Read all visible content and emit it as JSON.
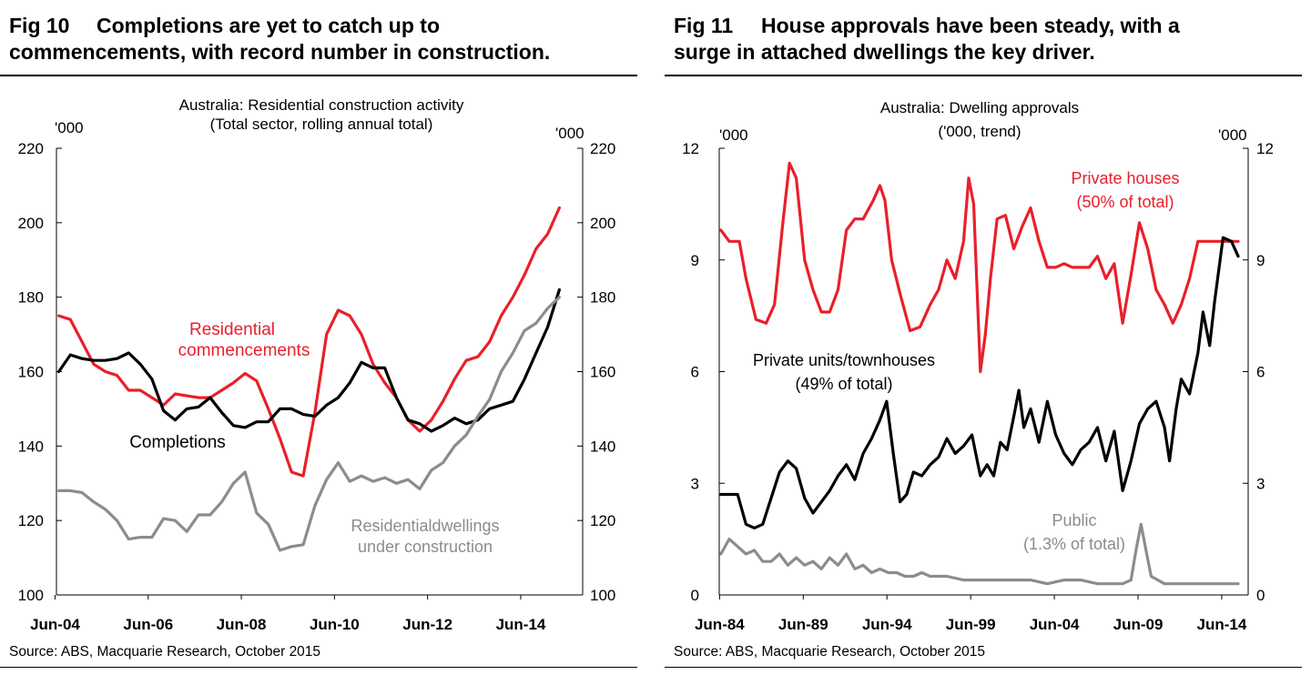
{
  "figures": [
    {
      "number": "Fig 10",
      "title_line1": "Completions are yet to catch up to",
      "title_line2": "commencements, with record number in construction.",
      "source": "Source: ABS, Macquarie Research, October 2015"
    },
    {
      "number": "Fig 11",
      "title_line1": "House approvals have been steady, with a",
      "title_line2": "surge in attached dwellings the key driver.",
      "source": "Source: ABS, Macquarie Research, October 2015"
    }
  ],
  "chart_data": [
    {
      "type": "line",
      "title": "Australia: Residential construction activity",
      "subtitle": "(Total sector, rolling annual total)",
      "ylabel_left": "'000",
      "ylabel_right": "'000",
      "ylim": [
        100,
        220
      ],
      "yticks": [
        100,
        120,
        140,
        160,
        180,
        200,
        220
      ],
      "xlim": [
        2004.45,
        2015.75
      ],
      "xticks": [
        {
          "value": 2004.42,
          "label": "Jun-04"
        },
        {
          "value": 2006.42,
          "label": "Jun-06"
        },
        {
          "value": 2008.42,
          "label": "Jun-08"
        },
        {
          "value": 2010.42,
          "label": "Jun-10"
        },
        {
          "value": 2012.42,
          "label": "Jun-12"
        },
        {
          "value": 2014.42,
          "label": "Jun-14"
        }
      ],
      "grid": false,
      "series": [
        {
          "name": "Residential commencements",
          "color": "#e8202a",
          "x": [
            2004.5,
            2004.75,
            2005,
            2005.25,
            2005.5,
            2005.75,
            2006,
            2006.25,
            2006.5,
            2006.75,
            2007,
            2007.25,
            2007.5,
            2007.75,
            2008,
            2008.25,
            2008.5,
            2008.75,
            2009,
            2009.25,
            2009.5,
            2009.75,
            2010,
            2010.25,
            2010.5,
            2010.75,
            2011,
            2011.25,
            2011.5,
            2011.75,
            2012,
            2012.25,
            2012.5,
            2012.75,
            2013,
            2013.25,
            2013.5,
            2013.75,
            2014,
            2014.25,
            2014.5,
            2014.75,
            2015,
            2015.25
          ],
          "y": [
            175,
            174,
            168,
            162,
            160,
            159,
            155,
            155,
            153,
            151,
            154,
            153.5,
            153,
            153,
            155,
            157,
            159.5,
            157.5,
            150,
            142,
            133,
            132,
            149,
            170,
            176.5,
            175,
            170,
            162,
            157,
            153,
            147,
            144,
            147,
            152,
            158,
            163,
            164,
            168,
            175,
            180,
            186,
            193,
            197,
            204
          ]
        },
        {
          "name": "Completions",
          "color": "#000000",
          "x": [
            2004.5,
            2004.75,
            2005,
            2005.25,
            2005.5,
            2005.75,
            2006,
            2006.25,
            2006.5,
            2006.75,
            2007,
            2007.25,
            2007.5,
            2007.75,
            2008,
            2008.25,
            2008.5,
            2008.75,
            2009,
            2009.25,
            2009.5,
            2009.75,
            2010,
            2010.25,
            2010.5,
            2010.75,
            2011,
            2011.25,
            2011.5,
            2011.75,
            2012,
            2012.25,
            2012.5,
            2012.75,
            2013,
            2013.25,
            2013.5,
            2013.75,
            2014,
            2014.25,
            2014.5,
            2014.75,
            2015,
            2015.25
          ],
          "y": [
            160,
            164.5,
            163.5,
            163,
            163,
            163.5,
            165,
            162,
            158,
            149.5,
            147,
            150,
            150.5,
            153,
            149,
            145.5,
            145,
            146.5,
            146.5,
            150,
            150,
            148.5,
            148,
            151,
            153,
            157,
            162.5,
            161,
            161,
            153,
            147,
            146,
            144,
            145.5,
            147.5,
            146,
            147,
            150,
            151,
            152,
            158,
            165,
            172,
            182
          ]
        },
        {
          "name": "Residential dwellings under construction",
          "color": "#8c8c8c",
          "x": [
            2004.5,
            2004.75,
            2005,
            2005.25,
            2005.5,
            2005.75,
            2006,
            2006.25,
            2006.5,
            2006.75,
            2007,
            2007.25,
            2007.5,
            2007.75,
            2008,
            2008.25,
            2008.5,
            2008.75,
            2009,
            2009.25,
            2009.5,
            2009.75,
            2010,
            2010.25,
            2010.5,
            2010.75,
            2011,
            2011.25,
            2011.5,
            2011.75,
            2012,
            2012.25,
            2012.5,
            2012.75,
            2013,
            2013.25,
            2013.5,
            2013.75,
            2014,
            2014.25,
            2014.5,
            2014.75,
            2015,
            2015.25
          ],
          "y": [
            128,
            128,
            127.5,
            125,
            123,
            120,
            115,
            115.5,
            115.5,
            120.5,
            120,
            117,
            121.5,
            121.5,
            125,
            130,
            133,
            122,
            119,
            112,
            113,
            113.5,
            124,
            131,
            135.5,
            130.5,
            132,
            130.5,
            131.5,
            130,
            131,
            128.5,
            133.5,
            135.5,
            140,
            143,
            148,
            152.5,
            160,
            165,
            171,
            173,
            177,
            180
          ]
        }
      ],
      "annotations": [
        {
          "text": "Residential",
          "series": "Residential commencements"
        },
        {
          "text": "commencements",
          "series": "Residential commencements"
        },
        {
          "text": "Completions",
          "series": "Completions"
        },
        {
          "text": "Residentialdwellings",
          "series": "Residential dwellings under construction"
        },
        {
          "text": "under construction",
          "series": "Residential dwellings under construction"
        }
      ]
    },
    {
      "type": "line",
      "title": "Australia: Dwelling approvals",
      "subtitle": "('000, trend)",
      "ylabel_left": "'000",
      "ylabel_right": "'000",
      "ylim": [
        0,
        12
      ],
      "yticks": [
        0,
        3,
        6,
        9,
        12
      ],
      "xlim": [
        1984.4,
        2016.0
      ],
      "xticks": [
        {
          "value": 1984.42,
          "label": "Jun-84"
        },
        {
          "value": 1989.42,
          "label": "Jun-89"
        },
        {
          "value": 1994.42,
          "label": "Jun-94"
        },
        {
          "value": 1999.42,
          "label": "Jun-99"
        },
        {
          "value": 2004.42,
          "label": "Jun-04"
        },
        {
          "value": 2009.42,
          "label": "Jun-09"
        },
        {
          "value": 2014.42,
          "label": "Jun-14"
        }
      ],
      "grid": false,
      "series": [
        {
          "name": "Private houses",
          "color": "#e8202a",
          "x": [
            1984.5,
            1985,
            1985.6,
            1986,
            1986.6,
            1987.2,
            1987.7,
            1988.2,
            1988.6,
            1989,
            1989.5,
            1990,
            1990.5,
            1991,
            1991.5,
            1992,
            1992.5,
            1993,
            1993.6,
            1994,
            1994.3,
            1994.7,
            1995.2,
            1995.8,
            1996.4,
            1997,
            1997.5,
            1998,
            1998.5,
            1999,
            1999.3,
            1999.6,
            2000,
            2000.3,
            2000.6,
            2001,
            2001.5,
            2002,
            2002.5,
            2003,
            2003.5,
            2004,
            2004.5,
            2005,
            2005.5,
            2006,
            2006.5,
            2007,
            2007.5,
            2008,
            2008.5,
            2009,
            2009.5,
            2010,
            2010.5,
            2011,
            2011.5,
            2012,
            2012.5,
            2013,
            2013.5,
            2014,
            2014.5,
            2015,
            2015.4
          ],
          "y": [
            9.8,
            9.5,
            9.5,
            8.5,
            7.4,
            7.3,
            7.8,
            10,
            11.6,
            11.2,
            9,
            8.2,
            7.6,
            7.6,
            8.2,
            9.8,
            10.1,
            10.1,
            10.6,
            11,
            10.6,
            9,
            8.1,
            7.1,
            7.2,
            7.8,
            8.2,
            9,
            8.5,
            9.5,
            11.2,
            10.5,
            6,
            7,
            8.5,
            10.1,
            10.2,
            9.3,
            9.9,
            10.4,
            9.5,
            8.8,
            8.8,
            8.9,
            8.8,
            8.8,
            8.8,
            9.1,
            8.5,
            8.9,
            7.3,
            8.6,
            10,
            9.3,
            8.2,
            7.8,
            7.3,
            7.8,
            8.5,
            9.5,
            9.5,
            9.5,
            9.5,
            9.5,
            9.5
          ]
        },
        {
          "name": "Private units/townhouses",
          "color": "#000000",
          "x": [
            1984.5,
            1985,
            1985.5,
            1986,
            1986.5,
            1987,
            1987.5,
            1988,
            1988.5,
            1989,
            1989.5,
            1990,
            1990.5,
            1991,
            1991.5,
            1992,
            1992.5,
            1993,
            1993.5,
            1994,
            1994.4,
            1994.8,
            1995.2,
            1995.6,
            1996,
            1996.5,
            1997,
            1997.5,
            1998,
            1998.5,
            1999,
            1999.5,
            2000,
            2000.4,
            2000.8,
            2001.2,
            2001.6,
            2002,
            2002.3,
            2002.6,
            2003,
            2003.5,
            2004,
            2004.5,
            2005,
            2005.5,
            2006,
            2006.5,
            2007,
            2007.5,
            2008,
            2008.5,
            2009,
            2009.5,
            2010,
            2010.5,
            2011,
            2011.3,
            2011.7,
            2012,
            2012.5,
            2013,
            2013.3,
            2013.7,
            2014,
            2014.5,
            2015,
            2015.4
          ],
          "y": [
            2.7,
            2.7,
            2.7,
            1.9,
            1.8,
            1.9,
            2.6,
            3.3,
            3.6,
            3.4,
            2.6,
            2.2,
            2.5,
            2.8,
            3.2,
            3.5,
            3.1,
            3.8,
            4.2,
            4.7,
            5.2,
            3.8,
            2.5,
            2.7,
            3.3,
            3.2,
            3.5,
            3.7,
            4.2,
            3.8,
            4,
            4.3,
            3.2,
            3.5,
            3.2,
            4.1,
            3.9,
            4.8,
            5.5,
            4.5,
            5,
            4.1,
            5.2,
            4.3,
            3.8,
            3.5,
            3.9,
            4.1,
            4.5,
            3.6,
            4.4,
            2.8,
            3.6,
            4.6,
            5,
            5.2,
            4.5,
            3.6,
            5,
            5.8,
            5.4,
            6.5,
            7.6,
            6.7,
            7.9,
            9.6,
            9.5,
            9.1
          ]
        },
        {
          "name": "Public",
          "color": "#8c8c8c",
          "x": [
            1984.5,
            1985,
            1985.5,
            1986,
            1986.5,
            1987,
            1987.5,
            1988,
            1988.5,
            1989,
            1989.5,
            1990,
            1990.5,
            1991,
            1991.5,
            1992,
            1992.5,
            1993,
            1993.5,
            1994,
            1994.5,
            1995,
            1995.5,
            1996,
            1996.5,
            1997,
            1998,
            1999,
            2000,
            2001,
            2002,
            2003,
            2004,
            2005,
            2006,
            2007,
            2008,
            2008.5,
            2009,
            2009.3,
            2009.6,
            2009.9,
            2010.2,
            2010.6,
            2011,
            2011.5,
            2012,
            2012.5,
            2013,
            2013.5,
            2014,
            2014.5,
            2015,
            2015.4
          ],
          "y": [
            1.1,
            1.5,
            1.3,
            1.1,
            1.2,
            0.9,
            0.9,
            1.1,
            0.8,
            1.0,
            0.8,
            0.9,
            0.7,
            1.0,
            0.8,
            1.1,
            0.7,
            0.8,
            0.6,
            0.7,
            0.6,
            0.6,
            0.5,
            0.5,
            0.6,
            0.5,
            0.5,
            0.4,
            0.4,
            0.4,
            0.4,
            0.4,
            0.3,
            0.4,
            0.4,
            0.3,
            0.3,
            0.3,
            0.4,
            1.2,
            1.9,
            1.2,
            0.5,
            0.4,
            0.3,
            0.3,
            0.3,
            0.3,
            0.3,
            0.3,
            0.3,
            0.3,
            0.3,
            0.3
          ]
        }
      ],
      "annotations": [
        {
          "text": "Private houses",
          "series": "Private houses"
        },
        {
          "text": "(50% of total)",
          "series": "Private houses"
        },
        {
          "text": "Private units/townhouses",
          "series": "Private units/townhouses"
        },
        {
          "text": "(49% of total)",
          "series": "Private units/townhouses"
        },
        {
          "text": "Public",
          "series": "Public"
        },
        {
          "text": "(1.3% of total)",
          "series": "Public"
        }
      ]
    }
  ]
}
